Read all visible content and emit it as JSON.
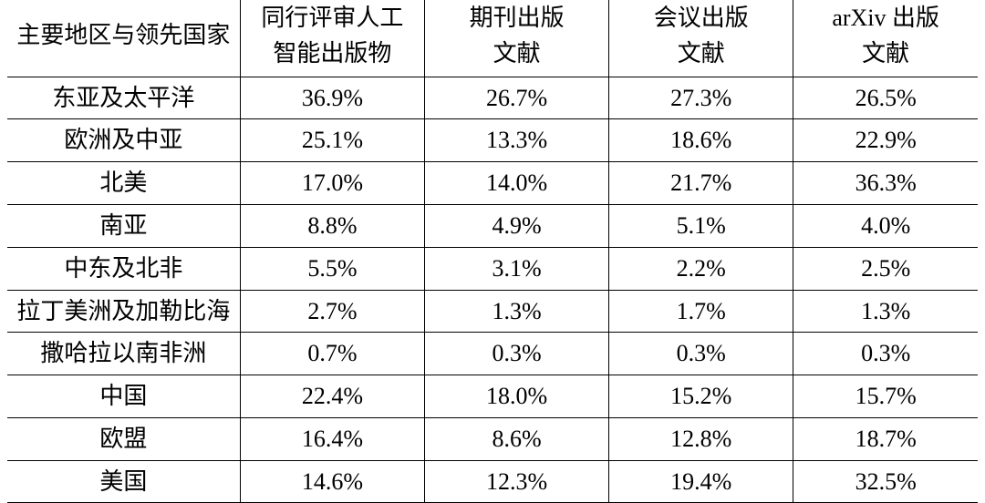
{
  "table": {
    "type": "table",
    "background_color": "#ffffff",
    "border_color": "#000000",
    "text_color": "#000000",
    "font_family": "SimSun",
    "header_fontsize": 26,
    "cell_fontsize": 26,
    "columns": [
      {
        "key": "region",
        "label_line1": "主要地区与领先国家",
        "label_line2": "",
        "width_pct": 24,
        "align": "center"
      },
      {
        "key": "peer",
        "label_line1": "同行评审人工",
        "label_line2": "智能出版物",
        "width_pct": 19,
        "align": "center"
      },
      {
        "key": "journal",
        "label_line1": "期刊出版",
        "label_line2": "文献",
        "width_pct": 19,
        "align": "center"
      },
      {
        "key": "conf",
        "label_line1": "会议出版",
        "label_line2": "文献",
        "width_pct": 19,
        "align": "center"
      },
      {
        "key": "arxiv",
        "label_line1": "arXiv 出版",
        "label_line2": "文献",
        "width_pct": 19,
        "align": "center"
      }
    ],
    "rows": [
      {
        "region": "东亚及太平洋",
        "peer": "36.9%",
        "journal": "26.7%",
        "conf": "27.3%",
        "arxiv": "26.5%"
      },
      {
        "region": "欧洲及中亚",
        "peer": "25.1%",
        "journal": "13.3%",
        "conf": "18.6%",
        "arxiv": "22.9%"
      },
      {
        "region": "北美",
        "peer": "17.0%",
        "journal": "14.0%",
        "conf": "21.7%",
        "arxiv": "36.3%"
      },
      {
        "region": "南亚",
        "peer": "8.8%",
        "journal": "4.9%",
        "conf": "5.1%",
        "arxiv": "4.0%"
      },
      {
        "region": "中东及北非",
        "peer": "5.5%",
        "journal": "3.1%",
        "conf": "2.2%",
        "arxiv": "2.5%"
      },
      {
        "region": "拉丁美洲及加勒比海",
        "peer": "2.7%",
        "journal": "1.3%",
        "conf": "1.7%",
        "arxiv": "1.3%"
      },
      {
        "region": "撒哈拉以南非洲",
        "peer": "0.7%",
        "journal": "0.3%",
        "conf": "0.3%",
        "arxiv": "0.3%"
      },
      {
        "region": "中国",
        "peer": "22.4%",
        "journal": "18.0%",
        "conf": "15.2%",
        "arxiv": "15.7%"
      },
      {
        "region": "欧盟",
        "peer": "16.4%",
        "journal": "8.6%",
        "conf": "12.8%",
        "arxiv": "18.7%"
      },
      {
        "region": "美国",
        "peer": "14.6%",
        "journal": "12.3%",
        "conf": "19.4%",
        "arxiv": "32.5%"
      }
    ]
  }
}
